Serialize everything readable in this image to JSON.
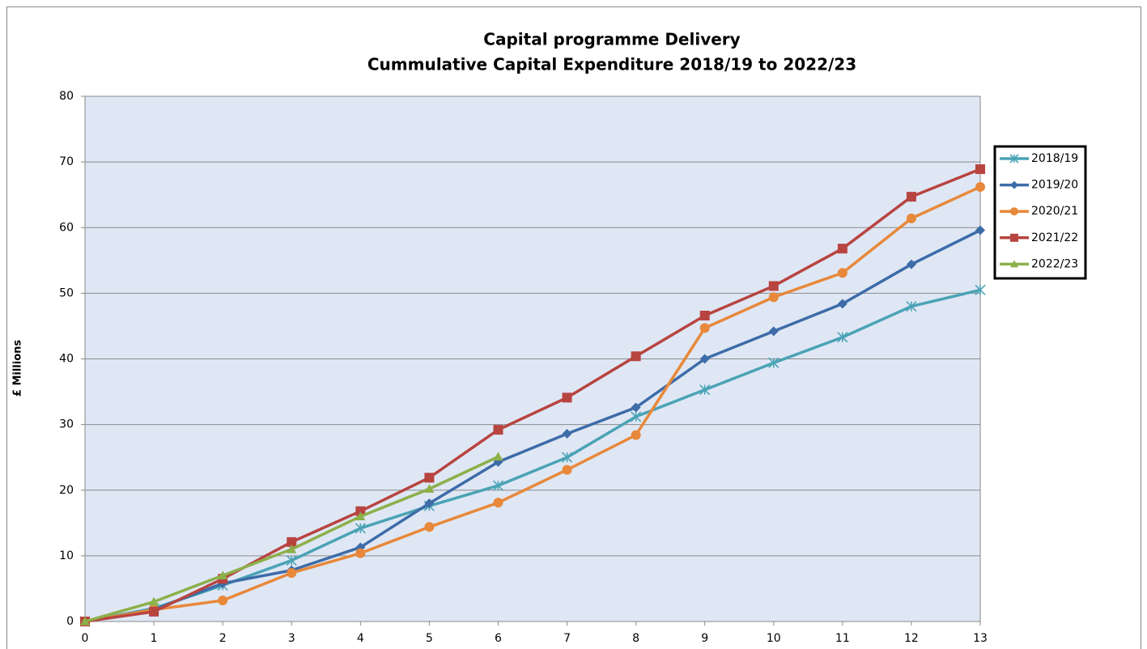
{
  "chart_data": {
    "type": "line",
    "title": [
      "Capital programme Delivery",
      "Cummulative Capital Expenditure 2018/19 to 2022/23"
    ],
    "y_label": "£ Millions",
    "x": [
      0,
      1,
      2,
      3,
      4,
      5,
      6,
      7,
      8,
      9,
      10,
      11,
      12,
      13
    ],
    "xlim": [
      0,
      13
    ],
    "xticks": [
      0,
      1,
      2,
      3,
      4,
      5,
      6,
      7,
      8,
      9,
      10,
      11,
      12,
      13
    ],
    "ylim": [
      0,
      80
    ],
    "yticks": [
      0,
      10,
      20,
      30,
      40,
      50,
      60,
      70,
      80
    ],
    "grid": true,
    "legend": "right",
    "series": [
      {
        "name": "2018/19",
        "color": "#4aa3b5",
        "marker": "asterisk",
        "values": [
          0,
          2,
          5.5,
          9.3,
          14.2,
          17.6,
          20.7,
          25,
          31.2,
          35.3,
          39.4,
          43.3,
          48,
          50.5
        ]
      },
      {
        "name": "2019/20",
        "color": "#3d6ca8",
        "marker": "diamond",
        "values": [
          0,
          1.8,
          5.8,
          7.8,
          11.3,
          18,
          24.3,
          28.6,
          32.6,
          40,
          44.2,
          48.4,
          54.4,
          59.6
        ]
      },
      {
        "name": "2020/21",
        "color": "#e8883a",
        "marker": "circle",
        "values": [
          0,
          1.8,
          3.2,
          7.4,
          10.4,
          14.4,
          18.1,
          23.1,
          28.4,
          44.7,
          49.4,
          53.1,
          61.4,
          66.2
        ]
      },
      {
        "name": "2021/22",
        "color": "#b84440",
        "marker": "square",
        "values": [
          0,
          1.5,
          6.5,
          12.1,
          16.8,
          21.9,
          29.2,
          34.1,
          40.4,
          46.6,
          51.1,
          56.8,
          64.7,
          68.9
        ]
      },
      {
        "name": "2022/23",
        "color": "#8cb04a",
        "marker": "triangle",
        "values": [
          0,
          3,
          7,
          11,
          16,
          20.2,
          25.1,
          null,
          null,
          null,
          null,
          null,
          null,
          null
        ]
      }
    ]
  }
}
